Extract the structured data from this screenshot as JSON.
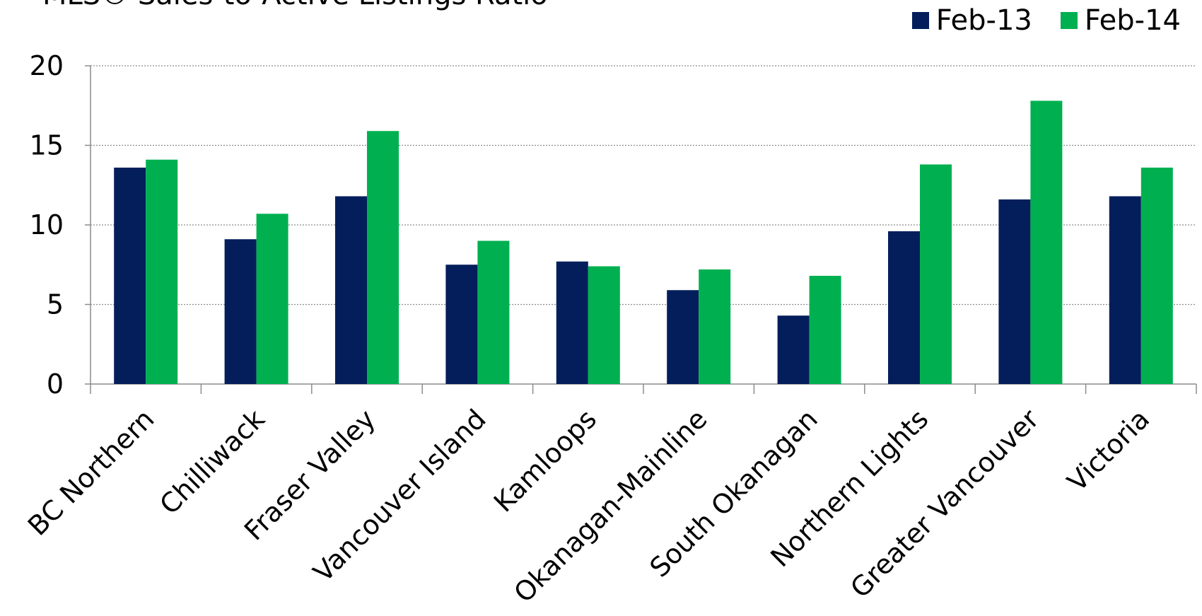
{
  "chart_data": {
    "type": "bar",
    "title": "MLS® Sales-to-Active Listings Ratio",
    "categories": [
      "BC Northern",
      "Chilliwack",
      "Fraser Valley",
      "Vancouver Island",
      "Kamloops",
      "Okanagan-Mainline",
      "South Okanagan",
      "Northern Lights",
      "Greater Vancouver",
      "Victoria"
    ],
    "series": [
      {
        "name": "Feb-13",
        "color": "#041E5B",
        "values": [
          13.6,
          9.1,
          11.8,
          7.5,
          7.7,
          5.9,
          4.3,
          9.6,
          11.6,
          11.8
        ]
      },
      {
        "name": "Feb-14",
        "color": "#00B050",
        "values": [
          14.1,
          10.7,
          15.9,
          9.0,
          7.4,
          7.2,
          6.8,
          13.8,
          17.8,
          13.6
        ]
      }
    ],
    "ylim": [
      0,
      20
    ],
    "yticks": [
      0,
      5,
      10,
      15,
      20
    ],
    "grid": true,
    "legend_position": "top-right"
  }
}
